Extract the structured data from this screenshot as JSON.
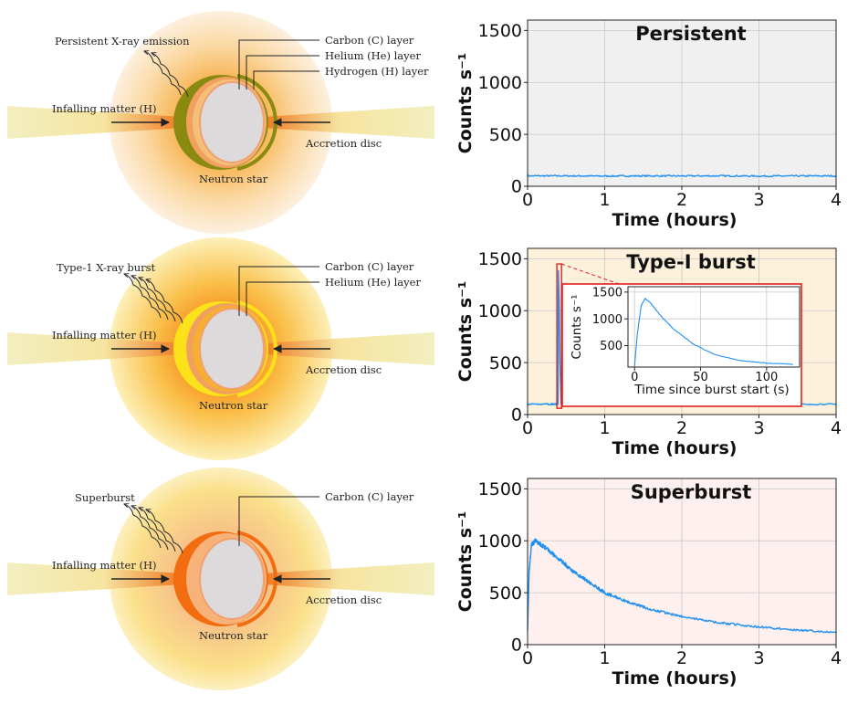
{
  "colors": {
    "signal": "#1f8ff0",
    "inset_border": "#e02020",
    "persistent_bg": "#f0f0f0",
    "type1_bg": "#fdf1dc",
    "superburst_bg": "#fdf0ee",
    "disc": "#f3efbf",
    "star_core": "#dcdadb"
  },
  "diagrams": [
    {
      "emission_label": "Persistent X-ray emission",
      "layers": [
        "Carbon (C) layer",
        "Helium (He) layer",
        "Hydrogen (H) layer"
      ],
      "infall_label": "Infalling matter (H)",
      "disc_label": "Accretion disc",
      "star_label": "Neutron star",
      "icons": [
        "wavy-arrow-icon",
        "arrow-right-icon",
        "arrow-left-icon"
      ]
    },
    {
      "emission_label": "Type-1 X-ray burst",
      "layers": [
        "Carbon (C) layer",
        "Helium (He) layer"
      ],
      "infall_label": "Infalling matter (H)",
      "disc_label": "Accretion disc",
      "star_label": "Neutron star",
      "icons": [
        "wavy-arrow-icon",
        "arrow-right-icon",
        "arrow-left-icon"
      ]
    },
    {
      "emission_label": "Superburst",
      "layers": [
        "Carbon (C) layer"
      ],
      "infall_label": "Infalling matter (H)",
      "disc_label": "Accretion disc",
      "star_label": "Neutron star",
      "icons": [
        "wavy-arrow-icon",
        "arrow-right-icon",
        "arrow-left-icon"
      ]
    }
  ],
  "chart_data": [
    {
      "type": "line",
      "title": "Persistent",
      "xlabel": "Time (hours)",
      "ylabel": "Counts s⁻¹",
      "xlim": [
        0,
        4
      ],
      "ylim": [
        0,
        1600
      ],
      "xticks": [
        0,
        1,
        2,
        3,
        4
      ],
      "yticks": [
        0,
        500,
        1000,
        1500
      ],
      "grid": true,
      "series": [
        {
          "x": [
            0,
            0.5,
            1,
            1.5,
            2,
            2.5,
            3,
            3.5,
            4
          ],
          "y": [
            100,
            100,
            98,
            100,
            99,
            100,
            98,
            99,
            100
          ]
        }
      ]
    },
    {
      "type": "line",
      "title": "Type-I burst",
      "xlabel": "Time (hours)",
      "ylabel": "Counts s⁻¹",
      "xlim": [
        0,
        4
      ],
      "ylim": [
        0,
        1600
      ],
      "xticks": [
        0,
        1,
        2,
        3,
        4
      ],
      "yticks": [
        0,
        500,
        1000,
        1500
      ],
      "grid": true,
      "series": [
        {
          "x": [
            0,
            0.3,
            0.38,
            0.395,
            0.4,
            0.41,
            0.42,
            0.435,
            0.5,
            1,
            2,
            3,
            4
          ],
          "y": [
            100,
            100,
            100,
            100,
            1380,
            1100,
            500,
            100,
            100,
            100,
            100,
            100,
            100
          ]
        }
      ],
      "inset": {
        "xlabel": "Time since burst start (s)",
        "ylabel": "Counts s⁻¹",
        "xlim": [
          -5,
          125
        ],
        "ylim": [
          100,
          1600
        ],
        "xticks": [
          0,
          50,
          100
        ],
        "yticks": [
          500,
          1000,
          1500
        ],
        "grid": true,
        "series": [
          {
            "x": [
              0,
              2,
              5,
              8,
              12,
              20,
              30,
              45,
              60,
              80,
              100,
              120
            ],
            "y": [
              120,
              700,
              1250,
              1380,
              1300,
              1050,
              800,
              520,
              340,
              220,
              175,
              150
            ]
          }
        ]
      }
    },
    {
      "type": "line",
      "title": "Superburst",
      "xlabel": "Time (hours)",
      "ylabel": "Counts s⁻¹",
      "xlim": [
        0,
        4
      ],
      "ylim": [
        0,
        1600
      ],
      "xticks": [
        0,
        1,
        2,
        3,
        4
      ],
      "yticks": [
        0,
        500,
        1000,
        1500
      ],
      "grid": true,
      "series": [
        {
          "x": [
            0,
            0.02,
            0.05,
            0.1,
            0.2,
            0.4,
            0.6,
            0.8,
            1.0,
            1.3,
            1.6,
            2.0,
            2.5,
            3.0,
            3.5,
            4.0
          ],
          "y": [
            150,
            700,
            960,
            1000,
            950,
            830,
            700,
            600,
            500,
            410,
            340,
            270,
            210,
            170,
            140,
            120
          ]
        }
      ]
    }
  ]
}
